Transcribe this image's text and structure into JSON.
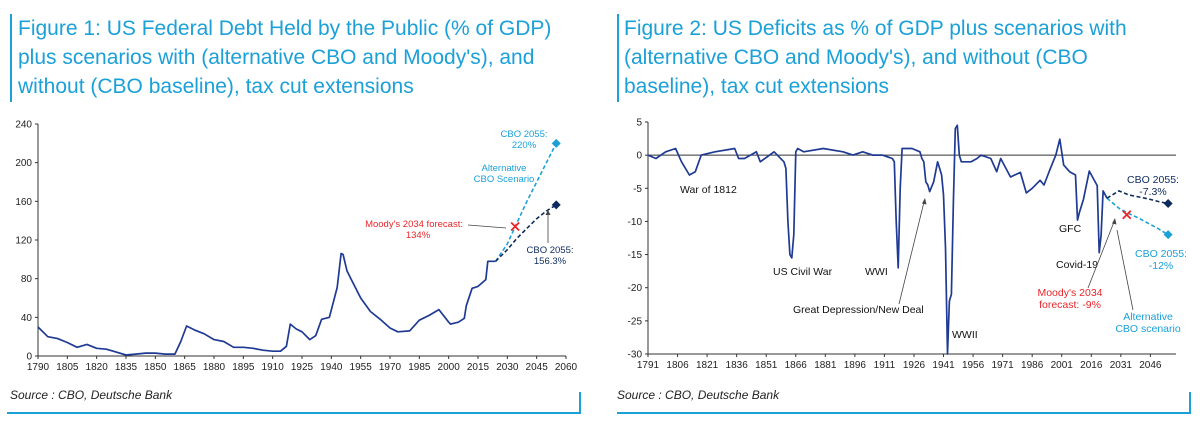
{
  "figures": [
    {
      "title": "Figure 1: US Federal Debt Held by the Public (% of GDP) plus scenarios with (alternative CBO and Moody's), and without (CBO baseline), tax cut extensions",
      "source": "Source : CBO, Deutsche Bank"
    },
    {
      "title": "Figure 2: US Deficits as % of GDP plus scenarios with (alternative CBO and Moody's), and without (CBO baseline), tax cut extensions",
      "source": "Source : CBO, Deutsche Bank"
    }
  ],
  "colors": {
    "title": "#1ba0d8",
    "historical": "#1f3a93",
    "baseline": "#0d2b5e",
    "alternative": "#1ba0d8",
    "moodys": "#e8262b"
  },
  "chart_data": [
    {
      "type": "line",
      "title": "",
      "xlabel": "",
      "ylabel": "",
      "xlim": [
        1790,
        2060
      ],
      "ylim": [
        0,
        240
      ],
      "x_ticks": [
        1790,
        1805,
        1820,
        1835,
        1850,
        1865,
        1880,
        1895,
        1910,
        1925,
        1940,
        1955,
        1970,
        1985,
        2000,
        2015,
        2030,
        2045,
        2060
      ],
      "y_ticks": [
        0,
        40,
        80,
        120,
        160,
        200,
        240
      ],
      "grid": false,
      "series": [
        {
          "style": "solid",
          "x": [
            1790,
            1795,
            1800,
            1805,
            1810,
            1815,
            1820,
            1825,
            1830,
            1835,
            1840,
            1845,
            1850,
            1855,
            1860,
            1863,
            1866,
            1870,
            1875,
            1880,
            1885,
            1890,
            1895,
            1900,
            1905,
            1910,
            1914,
            1917,
            1919,
            1922,
            1925,
            1929,
            1932,
            1935,
            1939,
            1943,
            1945,
            1946,
            1948,
            1950,
            1955,
            1960,
            1965,
            1970,
            1974,
            1980,
            1985,
            1990,
            1995,
            2000,
            2001,
            2005,
            2008,
            2009,
            2012,
            2015,
            2019,
            2020,
            2024
          ],
          "y": [
            30,
            20,
            18,
            14,
            9,
            12,
            8,
            7,
            4,
            1,
            2,
            3,
            3,
            2,
            2,
            15,
            31,
            27,
            23,
            17,
            15,
            9,
            9,
            8,
            6,
            5,
            5,
            10,
            33,
            28,
            25,
            17,
            21,
            38,
            40,
            71,
            106,
            105,
            88,
            80,
            60,
            46,
            38,
            29,
            25,
            26,
            37,
            42,
            48,
            35,
            33,
            35,
            39,
            52,
            70,
            72,
            79,
            98,
            98
          ]
        },
        {
          "name": "Alternative CBO Scenario",
          "style": "dashed",
          "x": [
            2024,
            2030,
            2035,
            2040,
            2045,
            2050,
            2055
          ],
          "y": [
            98,
            116,
            138,
            160,
            180,
            200,
            220
          ]
        },
        {
          "name": "CBO baseline",
          "style": "dashed",
          "x": [
            2024,
            2030,
            2035,
            2040,
            2045,
            2050,
            2055
          ],
          "y": [
            98,
            110,
            122,
            132,
            142,
            150,
            156.3
          ]
        }
      ],
      "annotations": [
        {
          "text": "CBO 2055:",
          "text2": "220%",
          "x": 2055,
          "y": 220,
          "marker": "diamond"
        },
        {
          "text": "Alternative",
          "text2": "CBO Scenario"
        },
        {
          "text": "Moody's 2034 forecast:",
          "text2": "134%",
          "x": 2034,
          "y": 134,
          "marker": "x"
        },
        {
          "text": "CBO 2055:",
          "text2": "156.3%",
          "x": 2055,
          "y": 156.3,
          "marker": "diamond"
        }
      ]
    },
    {
      "type": "line",
      "title": "",
      "xlabel": "",
      "ylabel": "",
      "xlim": [
        1791,
        2059
      ],
      "ylim": [
        -30,
        5
      ],
      "x_ticks": [
        1791,
        1806,
        1821,
        1836,
        1851,
        1866,
        1881,
        1896,
        1911,
        1926,
        1941,
        1956,
        1971,
        1986,
        2001,
        2016,
        2031,
        2046
      ],
      "y_ticks": [
        5,
        0,
        -5,
        -10,
        -15,
        -20,
        -25,
        -30
      ],
      "grid": false,
      "series": [
        {
          "style": "solid",
          "x": [
            1791,
            1795,
            1800,
            1805,
            1808,
            1812,
            1815,
            1818,
            1825,
            1835,
            1837,
            1840,
            1846,
            1848,
            1855,
            1860,
            1861,
            1862,
            1863,
            1864,
            1865,
            1866,
            1867,
            1870,
            1880,
            1890,
            1895,
            1900,
            1905,
            1910,
            1915,
            1916,
            1917,
            1918,
            1919,
            1920,
            1925,
            1929,
            1930,
            1931,
            1932,
            1933,
            1934,
            1936,
            1938,
            1940,
            1941,
            1942,
            1943,
            1944,
            1945,
            1946,
            1947,
            1948,
            1949,
            1950,
            1952,
            1955,
            1958,
            1960,
            1965,
            1968,
            1970,
            1975,
            1980,
            1983,
            1986,
            1990,
            1992,
            1995,
            1998,
            2000,
            2002,
            2005,
            2008,
            2009,
            2010,
            2012,
            2015,
            2019,
            2020,
            2021,
            2022,
            2024
          ],
          "y": [
            0,
            -0.5,
            0.5,
            1,
            -1,
            -3,
            -2.5,
            0,
            0.5,
            1,
            -0.5,
            -0.5,
            0.5,
            -1,
            0.5,
            -1,
            -2,
            -10,
            -15,
            -15.5,
            -12,
            0.5,
            1,
            0.5,
            1,
            0.5,
            0,
            0.5,
            0,
            0,
            -0.5,
            -1,
            -10,
            -17,
            -5,
            1,
            1,
            0.5,
            -0.5,
            -1,
            -4,
            -4.5,
            -5.5,
            -4,
            -1,
            -3,
            -6,
            -14,
            -30,
            -22,
            -21,
            -7,
            4,
            4.5,
            0,
            -1,
            -1,
            -1,
            -0.5,
            0,
            -0.5,
            -2.5,
            -0.5,
            -3.3,
            -2.6,
            -5.7,
            -5,
            -3.8,
            -4.5,
            -2.2,
            0,
            2.4,
            -1.5,
            -2.5,
            -3,
            -9.8,
            -8.6,
            -6.7,
            -2.4,
            -4.6,
            -14.7,
            -12.1,
            -5.4,
            -6.5
          ]
        },
        {
          "name": "Alternative CBO scenario",
          "style": "dashed",
          "x": [
            2024,
            2030,
            2035,
            2040,
            2045,
            2050,
            2055
          ],
          "y": [
            -6.5,
            -8,
            -8.8,
            -9.5,
            -10.3,
            -11.1,
            -12
          ]
        },
        {
          "name": "CBO baseline",
          "style": "dashed",
          "x": [
            2024,
            2030,
            2035,
            2040,
            2045,
            2050,
            2055
          ],
          "y": [
            -6.5,
            -5.4,
            -6,
            -6.3,
            -6.6,
            -7,
            -7.3
          ]
        }
      ],
      "annotations": [
        {
          "text": "War of 1812"
        },
        {
          "text": "US Civil War"
        },
        {
          "text": "WWI"
        },
        {
          "text": "Great Depression/New Deal"
        },
        {
          "text": "WWII"
        },
        {
          "text": "GFC"
        },
        {
          "text": "Covid-19"
        },
        {
          "text": "CBO 2055:",
          "text2": "-7.3%",
          "x": 2055,
          "y": -7.3,
          "marker": "diamond"
        },
        {
          "text": "CBO 2055:",
          "text2": "-12%",
          "x": 2055,
          "y": -12,
          "marker": "diamond"
        },
        {
          "text": "Moody's 2034",
          "text2": "forecast: -9%",
          "x": 2034,
          "y": -9,
          "marker": "x"
        },
        {
          "text": "Alternative",
          "text2": "CBO scenario"
        }
      ]
    }
  ]
}
